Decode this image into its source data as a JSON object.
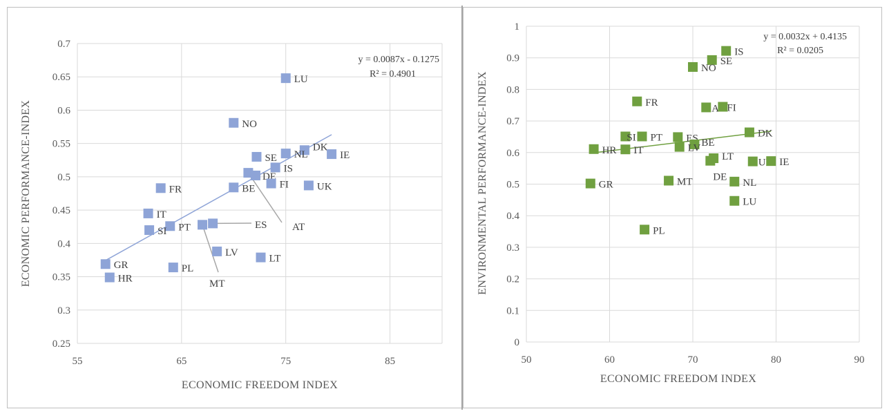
{
  "chart_data": [
    {
      "type": "scatter",
      "title": "",
      "xlabel": "ECONOMIC FREEDOM INDEX",
      "ylabel": "ECONOMIC PERFORMANCE-INDEX",
      "xlim": [
        55,
        90
      ],
      "ylim": [
        0.25,
        0.7
      ],
      "xticks": [
        "55",
        "65",
        "75",
        "85"
      ],
      "xtick_values": [
        55,
        65,
        75,
        85
      ],
      "yticks": [
        "0.25",
        "0.3",
        "0.35",
        "0.4",
        "0.45",
        "0.5",
        "0.55",
        "0.6",
        "0.65",
        "0.7"
      ],
      "ytick_values": [
        0.25,
        0.3,
        0.35,
        0.4,
        0.45,
        0.5,
        0.55,
        0.6,
        0.65,
        0.7
      ],
      "color": "#8ea4d7",
      "trend_color": "#8ea4d7",
      "trendline": {
        "slope": 0.0087,
        "intercept": -0.1275,
        "x_from": 57.7,
        "x_to": 79.4
      },
      "equation": "y = 0.0087x - 0.1275",
      "r2": "R² = 0.4901",
      "points": [
        {
          "label": "LU",
          "x": 75.0,
          "y": 0.648
        },
        {
          "label": "NO",
          "x": 70.0,
          "y": 0.581
        },
        {
          "label": "DK",
          "x": 76.8,
          "y": 0.54
        },
        {
          "label": "NL",
          "x": 75.0,
          "y": 0.535
        },
        {
          "label": "IE",
          "x": 79.4,
          "y": 0.534
        },
        {
          "label": "SE",
          "x": 72.2,
          "y": 0.53
        },
        {
          "label": "IS",
          "x": 74.0,
          "y": 0.514
        },
        {
          "label": "AT",
          "x": 71.4,
          "y": 0.506
        },
        {
          "label": "DE",
          "x": 72.1,
          "y": 0.502
        },
        {
          "label": "FI",
          "x": 73.6,
          "y": 0.49
        },
        {
          "label": "UK",
          "x": 77.2,
          "y": 0.487
        },
        {
          "label": "BE",
          "x": 70.0,
          "y": 0.484
        },
        {
          "label": "FR",
          "x": 63.0,
          "y": 0.483
        },
        {
          "label": "IT",
          "x": 61.8,
          "y": 0.445
        },
        {
          "label": "ES",
          "x": 68.0,
          "y": 0.43
        },
        {
          "label": "MT",
          "x": 67.0,
          "y": 0.428
        },
        {
          "label": "PT",
          "x": 63.9,
          "y": 0.426
        },
        {
          "label": "SI",
          "x": 61.9,
          "y": 0.42
        },
        {
          "label": "LV",
          "x": 68.4,
          "y": 0.388
        },
        {
          "label": "LT",
          "x": 72.6,
          "y": 0.379
        },
        {
          "label": "GR",
          "x": 57.7,
          "y": 0.369
        },
        {
          "label": "PL",
          "x": 64.2,
          "y": 0.364
        },
        {
          "label": "HR",
          "x": 58.1,
          "y": 0.349
        }
      ]
    },
    {
      "type": "scatter",
      "title": "",
      "xlabel": "ECONOMIC FREEDOM INDEX",
      "ylabel": "ENVIRONMENTAL PERFORMANCE-INDEX",
      "xlim": [
        50,
        90
      ],
      "ylim": [
        0,
        1
      ],
      "xticks": [
        "50",
        "60",
        "70",
        "80",
        "90"
      ],
      "xtick_values": [
        50,
        60,
        70,
        80,
        90
      ],
      "yticks": [
        "0",
        "0.1",
        "0.2",
        "0.3",
        "0.4",
        "0.5",
        "0.6",
        "0.7",
        "0.8",
        "0.9",
        "1"
      ],
      "ytick_values": [
        0,
        0.1,
        0.2,
        0.3,
        0.4,
        0.5,
        0.6,
        0.7,
        0.8,
        0.9,
        1.0
      ],
      "color": "#70a040",
      "trend_color": "#70a040",
      "trendline": {
        "slope": 0.0032,
        "intercept": 0.4135,
        "x_from": 58.0,
        "x_to": 79.4
      },
      "equation": "y = 0.0032x + 0.4135",
      "r2": "R² = 0.0205",
      "points": [
        {
          "label": "IS",
          "x": 74.0,
          "y": 0.922
        },
        {
          "label": "SE",
          "x": 72.3,
          "y": 0.893
        },
        {
          "label": "NO",
          "x": 70.0,
          "y": 0.871
        },
        {
          "label": "FR",
          "x": 63.3,
          "y": 0.762
        },
        {
          "label": "AT",
          "x": 71.6,
          "y": 0.743
        },
        {
          "label": "FI",
          "x": 73.6,
          "y": 0.745
        },
        {
          "label": "DK",
          "x": 76.8,
          "y": 0.664
        },
        {
          "label": "SI",
          "x": 61.9,
          "y": 0.651
        },
        {
          "label": "PT",
          "x": 63.9,
          "y": 0.651
        },
        {
          "label": "ES",
          "x": 68.2,
          "y": 0.649
        },
        {
          "label": "BE",
          "x": 70.2,
          "y": 0.626
        },
        {
          "label": "LV",
          "x": 68.4,
          "y": 0.618
        },
        {
          "label": "HR",
          "x": 58.1,
          "y": 0.611
        },
        {
          "label": "IT",
          "x": 61.9,
          "y": 0.61
        },
        {
          "label": "LT",
          "x": 72.5,
          "y": 0.582
        },
        {
          "label": "DE",
          "x": 72.1,
          "y": 0.574
        },
        {
          "label": "UK",
          "x": 77.2,
          "y": 0.572
        },
        {
          "label": "IE",
          "x": 79.4,
          "y": 0.573
        },
        {
          "label": "GR",
          "x": 57.7,
          "y": 0.502
        },
        {
          "label": "MT",
          "x": 67.1,
          "y": 0.511
        },
        {
          "label": "NL",
          "x": 75.0,
          "y": 0.508
        },
        {
          "label": "LU",
          "x": 75.0,
          "y": 0.447
        },
        {
          "label": "PL",
          "x": 64.2,
          "y": 0.356
        }
      ]
    }
  ]
}
